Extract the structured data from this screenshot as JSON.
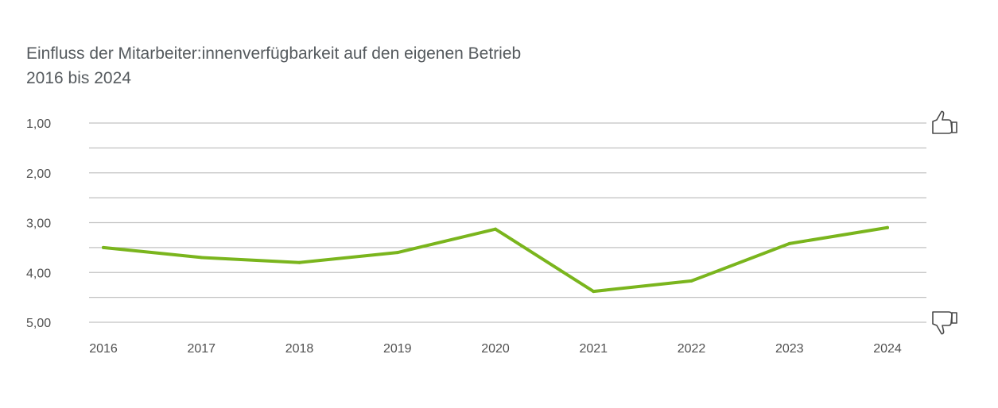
{
  "chart_data": {
    "type": "line",
    "title": "Einfluss der Mitarbeiter:innenverfügbarkeit auf den eigenen Betrieb",
    "subtitle": "2016 bis 2024",
    "xlabel": "",
    "ylabel": "",
    "x": [
      "2016",
      "2017",
      "2018",
      "2019",
      "2020",
      "2021",
      "2022",
      "2023",
      "2024"
    ],
    "y_tick_labels": [
      "1,00",
      "2,00",
      "3,00",
      "4,00",
      "5,00"
    ],
    "ylim": [
      1,
      5
    ],
    "y_inverted": true,
    "grid": true,
    "series": [
      {
        "values": [
          3.5,
          3.7,
          3.8,
          3.6,
          3.13,
          4.38,
          4.17,
          3.42,
          3.1
        ]
      }
    ],
    "line_color": "#7ab51d",
    "icons": {
      "top": "thumbs-up-icon",
      "bottom": "thumbs-down-icon"
    }
  }
}
